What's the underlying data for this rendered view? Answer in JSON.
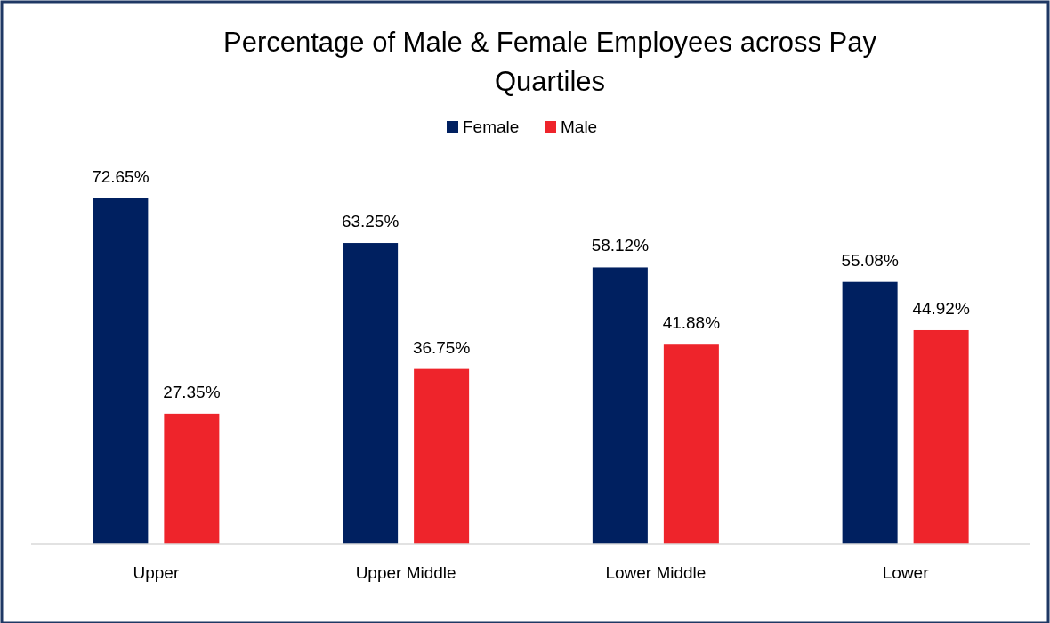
{
  "chart_data": {
    "type": "bar",
    "title": "Percentage of Male & Female Employees across Pay Quartiles",
    "categories": [
      "Upper",
      "Upper Middle",
      "Lower Middle",
      "Lower"
    ],
    "series": [
      {
        "name": "Female",
        "color": "#002060",
        "values": [
          72.65,
          63.25,
          58.12,
          55.08
        ],
        "value_labels": [
          "72.65%",
          "63.25%",
          "58.12%",
          "55.08%"
        ]
      },
      {
        "name": "Male",
        "color": "#ee242b",
        "values": [
          27.35,
          36.75,
          41.88,
          44.92
        ],
        "value_labels": [
          "27.35%",
          "36.75%",
          "41.88%",
          "44.92%"
        ]
      }
    ],
    "legend": "top"
  }
}
